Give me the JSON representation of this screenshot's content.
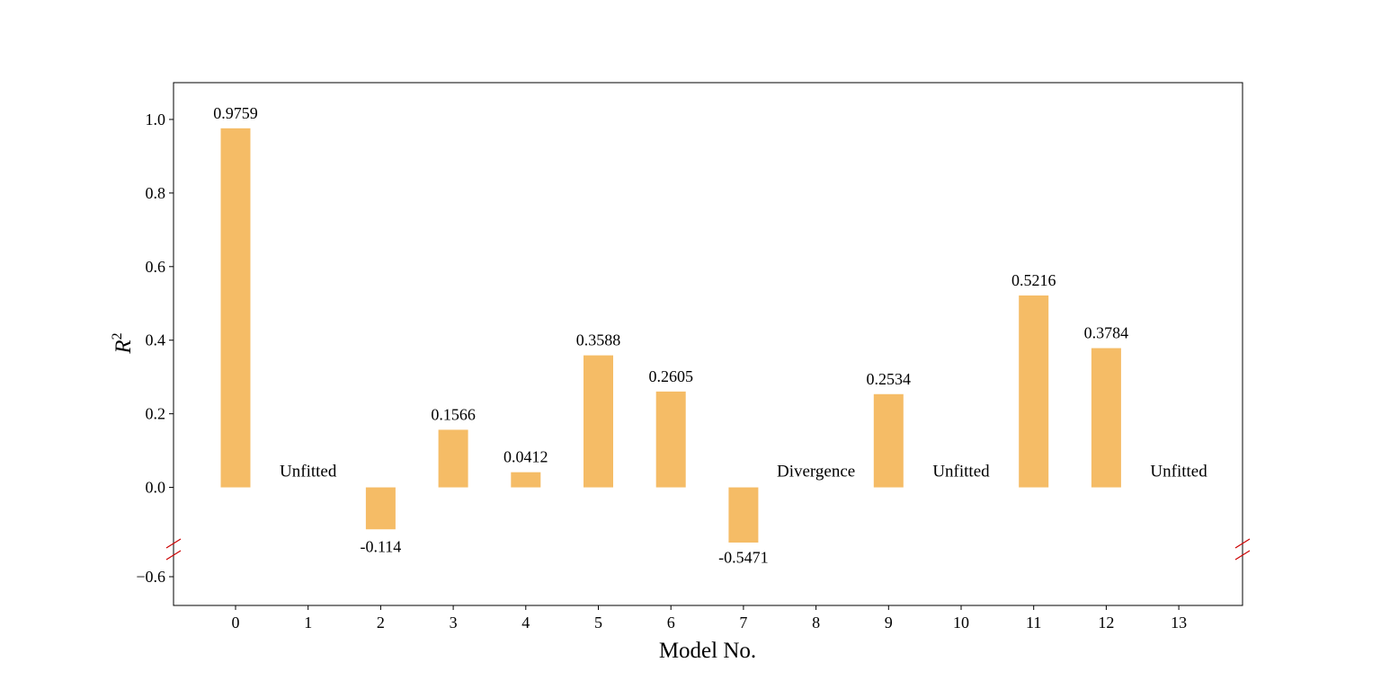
{
  "chart_data": {
    "type": "bar",
    "xlabel": "Model No.",
    "ylabel_base": "R",
    "ylabel_sup": "2",
    "categories": [
      "0",
      "1",
      "2",
      "3",
      "4",
      "5",
      "6",
      "7",
      "8",
      "9",
      "10",
      "11",
      "12",
      "13"
    ],
    "values": [
      0.9759,
      null,
      -0.114,
      0.1566,
      0.0412,
      0.3588,
      0.2605,
      -0.5471,
      null,
      0.2534,
      null,
      0.5216,
      0.3784,
      null
    ],
    "value_labels": [
      "0.9759",
      null,
      "-0.114",
      "0.1566",
      "0.0412",
      "0.3588",
      "0.2605",
      "-0.5471",
      null,
      "0.2534",
      null,
      "0.5216",
      "0.3784",
      null
    ],
    "annotations": [
      {
        "category": "1",
        "text": "Unfitted"
      },
      {
        "category": "8",
        "text": "Divergence"
      },
      {
        "category": "10",
        "text": "Unfitted"
      },
      {
        "category": "13",
        "text": "Unfitted"
      }
    ],
    "upper_ylim": [
      -0.15,
      1.1
    ],
    "upper_yticks": [
      "0.0",
      "0.2",
      "0.4",
      "0.6",
      "0.8",
      "1.0"
    ],
    "lower_ylim": [
      -0.64,
      -0.57
    ],
    "lower_yticks": [
      "−0.6"
    ],
    "broken_axis": true,
    "grid": false,
    "colors": {
      "bar": "#f5bc66",
      "break_marker": "#cc0000"
    }
  }
}
